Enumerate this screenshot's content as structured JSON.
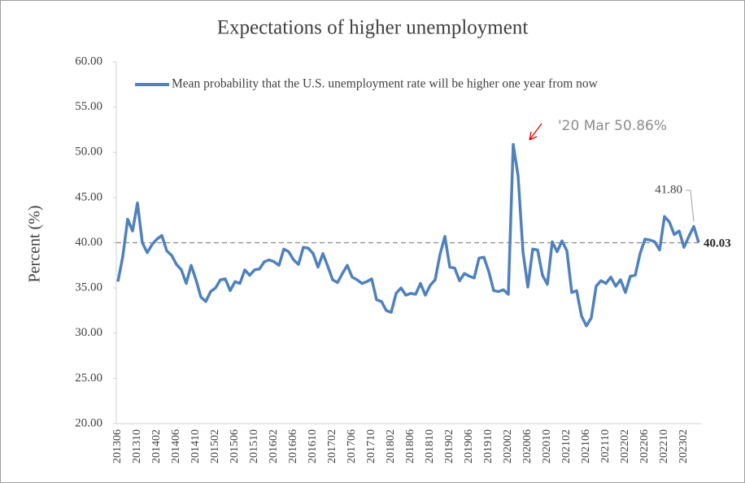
{
  "chart_data": {
    "type": "line",
    "title": "Expectations of higher unemployment",
    "y_label": "Percent (%)",
    "categories": [
      "201306",
      null,
      null,
      null,
      "201310",
      null,
      null,
      null,
      "201402",
      null,
      null,
      null,
      "201406",
      null,
      null,
      null,
      "201410",
      null,
      null,
      null,
      "201502",
      null,
      null,
      null,
      "201506",
      null,
      null,
      null,
      "201510",
      null,
      null,
      null,
      "201602",
      null,
      null,
      null,
      "201606",
      null,
      null,
      null,
      "201610",
      null,
      null,
      null,
      "201702",
      null,
      null,
      null,
      "201706",
      null,
      null,
      null,
      "201710",
      null,
      null,
      null,
      "201802",
      null,
      null,
      null,
      "201806",
      null,
      null,
      null,
      "201810",
      null,
      null,
      null,
      "201902",
      null,
      null,
      null,
      "201906",
      null,
      null,
      null,
      "201910",
      null,
      null,
      null,
      "202002",
      null,
      null,
      null,
      "202006",
      null,
      null,
      null,
      "202010",
      null,
      null,
      null,
      "202102",
      null,
      null,
      null,
      "202106",
      null,
      null,
      null,
      "202110",
      null,
      null,
      null,
      "202202",
      null,
      null,
      null,
      "202206",
      null,
      null,
      null,
      "202210",
      null,
      null,
      null,
      "202302",
      null,
      null,
      null
    ],
    "series": [
      {
        "name": "Mean probability that the U.S. unemployment rate will be higher one year from now",
        "color": "#4f81bd",
        "values": [
          35.7,
          38.5,
          42.6,
          41.3,
          44.4,
          40.0,
          38.9,
          39.8,
          40.4,
          40.8,
          39.1,
          38.6,
          37.6,
          37.0,
          35.5,
          37.5,
          35.9,
          34.0,
          33.5,
          34.6,
          35.0,
          35.9,
          36.0,
          34.7,
          35.7,
          35.5,
          37.0,
          36.4,
          37.0,
          37.1,
          37.9,
          38.1,
          37.9,
          37.5,
          39.3,
          39.0,
          38.1,
          37.6,
          39.5,
          39.4,
          38.8,
          37.3,
          38.8,
          37.4,
          35.9,
          35.6,
          36.6,
          37.5,
          36.2,
          35.9,
          35.5,
          35.7,
          36.0,
          33.7,
          33.5,
          32.5,
          32.3,
          34.4,
          35.0,
          34.2,
          34.4,
          34.3,
          35.5,
          34.2,
          35.3,
          35.9,
          38.7,
          40.7,
          37.3,
          37.2,
          35.8,
          36.6,
          36.3,
          36.1,
          38.3,
          38.4,
          36.8,
          34.7,
          34.6,
          34.8,
          34.3,
          50.86,
          47.4,
          39.0,
          35.1,
          39.3,
          39.2,
          36.4,
          35.4,
          40.1,
          39.0,
          40.2,
          39.1,
          34.5,
          34.7,
          31.9,
          30.8,
          31.7,
          35.2,
          35.8,
          35.5,
          36.2,
          35.2,
          35.9,
          34.5,
          36.3,
          36.4,
          38.8,
          40.4,
          40.3,
          40.1,
          39.2,
          42.9,
          42.3,
          40.9,
          41.3,
          39.5,
          40.7,
          41.8,
          40.03
        ],
        "value_labels": [
          null,
          null,
          null,
          null,
          null,
          null,
          null,
          null,
          null,
          null,
          null,
          null,
          null,
          null,
          null,
          null,
          null,
          null,
          null,
          null,
          null,
          null,
          null,
          null,
          null,
          null,
          null,
          null,
          null,
          null,
          null,
          null,
          null,
          null,
          null,
          null,
          null,
          null,
          null,
          null,
          null,
          null,
          null,
          null,
          null,
          null,
          null,
          null,
          null,
          null,
          null,
          null,
          null,
          null,
          null,
          null,
          null,
          null,
          null,
          null,
          null,
          null,
          null,
          null,
          null,
          null,
          null,
          null,
          null,
          null,
          null,
          null,
          null,
          null,
          null,
          null,
          null,
          null,
          null,
          null,
          null,
          null,
          null,
          null,
          null,
          null,
          null,
          null,
          null,
          null,
          null,
          null,
          null,
          null,
          null,
          null,
          null,
          null,
          null,
          null,
          null,
          null,
          null,
          null,
          null,
          null,
          null,
          null,
          null,
          null,
          null,
          null,
          null,
          null,
          null,
          null,
          null,
          null,
          "41.80",
          "40.03"
        ]
      }
    ],
    "reference_line": 40,
    "annotations": [
      "'20 Mar 50.86%"
    ],
    "ylim": [
      20,
      60
    ],
    "yticks": [
      {
        "value": 20,
        "label": "20.00"
      },
      {
        "value": 25,
        "label": "25.00"
      },
      {
        "value": 30,
        "label": "30.00"
      },
      {
        "value": 35,
        "label": "35.00"
      },
      {
        "value": 40,
        "label": "40.00"
      },
      {
        "value": 45,
        "label": "45.00"
      },
      {
        "value": 50,
        "label": "50.00"
      },
      {
        "value": 55,
        "label": "55.00"
      },
      {
        "value": 60,
        "label": "60.00"
      }
    ],
    "grid": false,
    "legend": "top"
  }
}
